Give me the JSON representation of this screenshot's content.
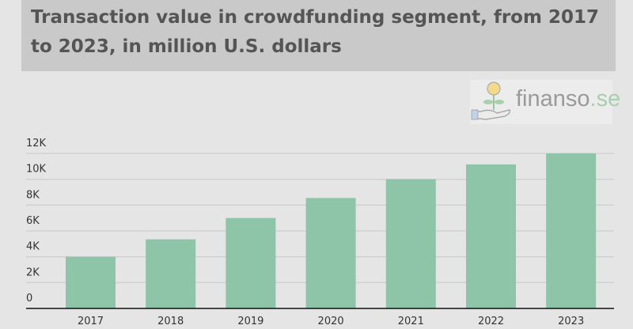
{
  "chart_data": {
    "type": "bar",
    "title": "Transaction value in crowdfunding segment, from 2017 to 2023, in million U.S. dollars",
    "categories": [
      "2017",
      "2018",
      "2019",
      "2020",
      "2021",
      "2022",
      "2023"
    ],
    "values": [
      4000,
      5350,
      7000,
      8550,
      10000,
      11150,
      12000
    ],
    "ylim": [
      0,
      12000
    ],
    "yticks": [
      0,
      2000,
      4000,
      6000,
      8000,
      10000,
      12000
    ],
    "ytick_labels": [
      "0",
      "2K",
      "4K",
      "6K",
      "8K",
      "10K",
      "12K"
    ],
    "grid": true,
    "bar_color": "#8ec4a8",
    "xlabel": "",
    "ylabel": ""
  },
  "logo": {
    "name": "finanso",
    "tld": ".se"
  }
}
